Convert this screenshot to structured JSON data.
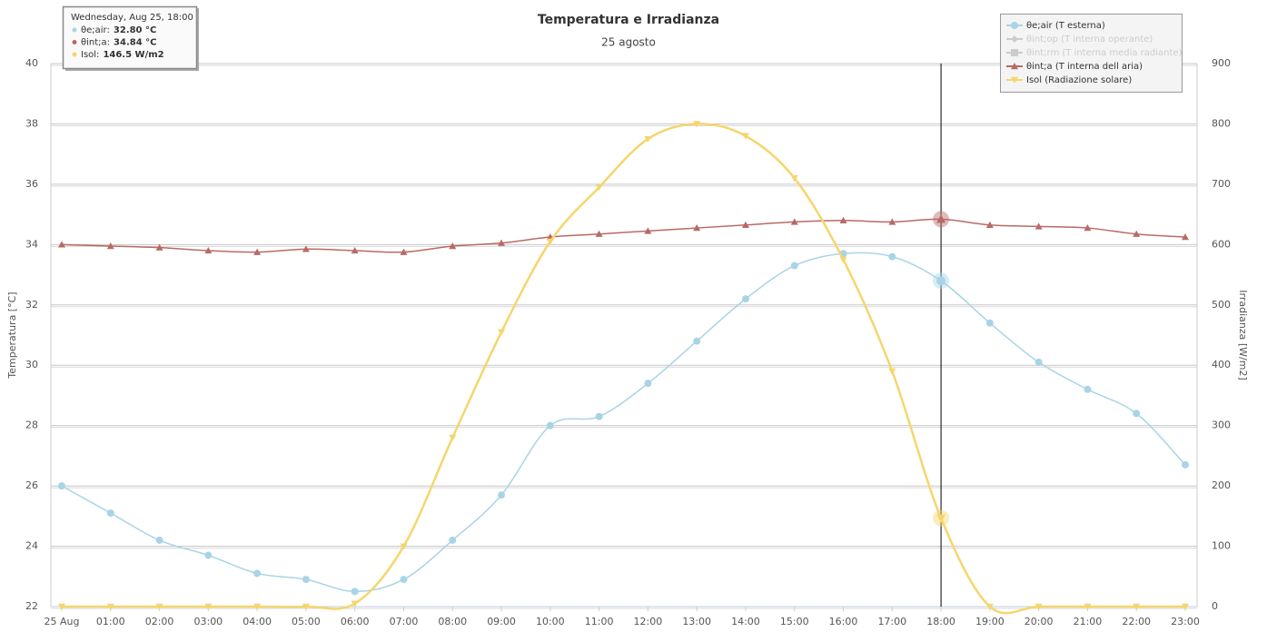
{
  "chart_data": {
    "type": "line",
    "title": "Temperatura e Irradianza",
    "subtitle": "25 agosto",
    "y_label": "Temperatura [°C]",
    "y2_label": "Irradianza [W/m2]",
    "categories": [
      "25 Aug",
      "01:00",
      "02:00",
      "03:00",
      "04:00",
      "05:00",
      "06:00",
      "07:00",
      "08:00",
      "09:00",
      "10:00",
      "11:00",
      "12:00",
      "13:00",
      "14:00",
      "15:00",
      "16:00",
      "17:00",
      "18:00",
      "19:00",
      "20:00",
      "21:00",
      "22:00",
      "23:00"
    ],
    "ylim": [
      22,
      40
    ],
    "yticks": [
      22,
      24,
      26,
      28,
      30,
      32,
      34,
      36,
      38,
      40
    ],
    "y2lim": [
      0,
      900
    ],
    "y2ticks": [
      0,
      100,
      200,
      300,
      400,
      500,
      600,
      700,
      800,
      900
    ],
    "grid": true,
    "legend": "top-right",
    "crosshair": "18:00",
    "series": [
      {
        "name": "θe;air (T esterna)",
        "color": "#a9d4e6",
        "marker": "circle",
        "visible": true,
        "values": [
          26.0,
          25.1,
          24.2,
          23.7,
          23.1,
          22.9,
          22.5,
          22.9,
          24.2,
          25.7,
          28.0,
          28.3,
          29.4,
          30.8,
          32.2,
          33.3,
          33.7,
          33.6,
          32.8,
          31.4,
          30.1,
          29.2,
          28.4,
          26.7
        ]
      },
      {
        "name": "θint;op (T interna operante)",
        "color": "#cccccc",
        "marker": "diamond",
        "visible": false
      },
      {
        "name": "θint;rm (T interna media radiante)",
        "color": "#cccccc",
        "marker": "square",
        "visible": false
      },
      {
        "name": "θint;a (T interna dell aria)",
        "color": "#b86a66",
        "marker": "triangle",
        "visible": true,
        "values": [
          34.0,
          33.95,
          33.9,
          33.8,
          33.75,
          33.85,
          33.8,
          33.75,
          33.95,
          34.05,
          34.25,
          34.35,
          34.45,
          34.55,
          34.65,
          34.75,
          34.8,
          34.75,
          34.84,
          34.65,
          34.6,
          34.55,
          34.35,
          34.25
        ]
      },
      {
        "name": "Isol (Radiazione solare)",
        "color": "#f5d66c",
        "marker": "triangle-down",
        "visible": true,
        "axis": "y2",
        "values": [
          0,
          0,
          0,
          0,
          0,
          0,
          5,
          100,
          280,
          455,
          605,
          695,
          775,
          800,
          780,
          710,
          575,
          390,
          146.5,
          0,
          0,
          0,
          0,
          0
        ]
      }
    ],
    "tooltip": {
      "header": "Wednesday, Aug 25, 18:00",
      "items": [
        {
          "label": "θe;air:",
          "value_label": "32.80 °C",
          "color": "#a9d4e6"
        },
        {
          "label": "θint;a:",
          "value_label": "34.84 °C",
          "color": "#b86a66"
        },
        {
          "label": "Isol:",
          "value_label": "146.5 W/m2",
          "color": "#f5d66c"
        }
      ]
    }
  }
}
